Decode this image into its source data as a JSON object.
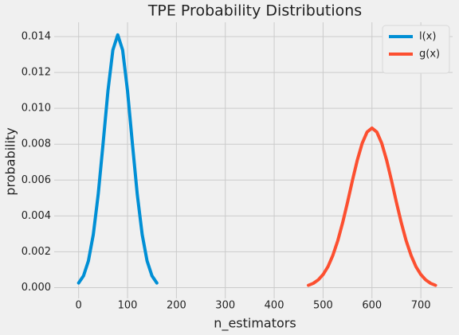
{
  "chart_data": {
    "type": "line",
    "title": "TPE Probability Distributions",
    "x_label": "n_estimators",
    "y_label": "probability",
    "series": [
      {
        "name": "l(x)",
        "color": "#008fd5",
        "x": [
          0,
          10,
          20,
          30,
          40,
          50,
          60,
          70,
          80,
          90,
          100,
          110,
          120,
          130,
          140,
          150,
          160
        ],
        "values": [
          0.00026,
          0.00066,
          0.00149,
          0.00296,
          0.00519,
          0.00803,
          0.01098,
          0.01325,
          0.0141,
          0.01325,
          0.01098,
          0.00803,
          0.00519,
          0.00296,
          0.00149,
          0.00066,
          0.00026
        ]
      },
      {
        "name": "g(x)",
        "color": "#fc4f30",
        "x": [
          470,
          480,
          490,
          500,
          510,
          520,
          530,
          540,
          550,
          560,
          570,
          580,
          590,
          600,
          610,
          620,
          630,
          640,
          650,
          660,
          670,
          680,
          690,
          700,
          710,
          720,
          730
        ],
        "values": [
          0.00013,
          0.00024,
          0.00043,
          0.00073,
          0.00117,
          0.0018,
          0.00261,
          0.00362,
          0.00476,
          0.00597,
          0.00711,
          0.00805,
          0.00868,
          0.0089,
          0.00868,
          0.00805,
          0.00711,
          0.00597,
          0.00476,
          0.00362,
          0.00261,
          0.0018,
          0.00117,
          0.00073,
          0.00043,
          0.00024,
          0.00013
        ]
      }
    ],
    "xlim": [
      -50,
      765
    ],
    "xticks": [
      0,
      100,
      200,
      300,
      400,
      500,
      600,
      700
    ],
    "ylim": [
      -0.0006,
      0.0148
    ],
    "yticks": [
      {
        "value": 0,
        "label": "0.000"
      },
      {
        "value": 0.002,
        "label": "0.002"
      },
      {
        "value": 0.004,
        "label": "0.004"
      },
      {
        "value": 0.006,
        "label": "0.006"
      },
      {
        "value": 0.008,
        "label": "0.008"
      },
      {
        "value": 0.01,
        "label": "0.010"
      },
      {
        "value": 0.012,
        "label": "0.012"
      },
      {
        "value": 0.014,
        "label": "0.014"
      }
    ],
    "grid": true,
    "legend": "upper right"
  }
}
